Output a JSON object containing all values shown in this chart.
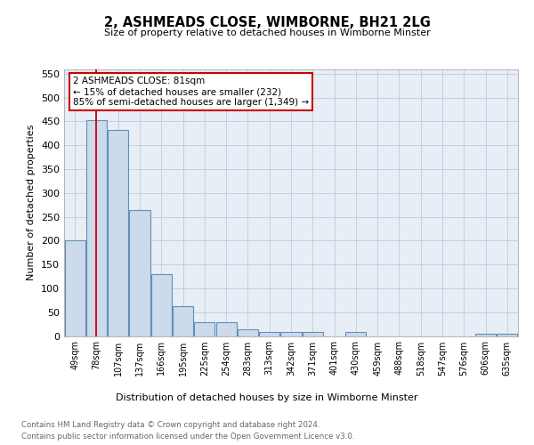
{
  "title": "2, ASHMEADS CLOSE, WIMBORNE, BH21 2LG",
  "subtitle": "Size of property relative to detached houses in Wimborne Minster",
  "xlabel": "Distribution of detached houses by size in Wimborne Minster",
  "ylabel": "Number of detached properties",
  "footer_line1": "Contains HM Land Registry data © Crown copyright and database right 2024.",
  "footer_line2": "Contains public sector information licensed under the Open Government Licence v3.0.",
  "categories": [
    "49sqm",
    "78sqm",
    "107sqm",
    "137sqm",
    "166sqm",
    "195sqm",
    "225sqm",
    "254sqm",
    "283sqm",
    "313sqm",
    "342sqm",
    "371sqm",
    "401sqm",
    "430sqm",
    "459sqm",
    "488sqm",
    "518sqm",
    "547sqm",
    "576sqm",
    "606sqm",
    "635sqm"
  ],
  "bar_heights": [
    200,
    452,
    432,
    265,
    130,
    62,
    29,
    29,
    14,
    8,
    8,
    8,
    0,
    8,
    0,
    0,
    0,
    0,
    0,
    5,
    5
  ],
  "bar_color": "#ccdaeb",
  "bar_edge_color": "#6090b8",
  "marker_line_color": "#cc0000",
  "annotation_line1": "2 ASHMEADS CLOSE: 81sqm",
  "annotation_line2": "← 15% of detached houses are smaller (232)",
  "annotation_line3": "85% of semi-detached houses are larger (1,349) →",
  "annotation_box_color": "#ffffff",
  "annotation_box_edge": "#cc0000",
  "ylim": [
    0,
    560
  ],
  "yticks": [
    0,
    50,
    100,
    150,
    200,
    250,
    300,
    350,
    400,
    450,
    500,
    550
  ],
  "grid_color": "#c5cfe0",
  "bg_color": "#e8eef6",
  "footer_color": "#666666"
}
